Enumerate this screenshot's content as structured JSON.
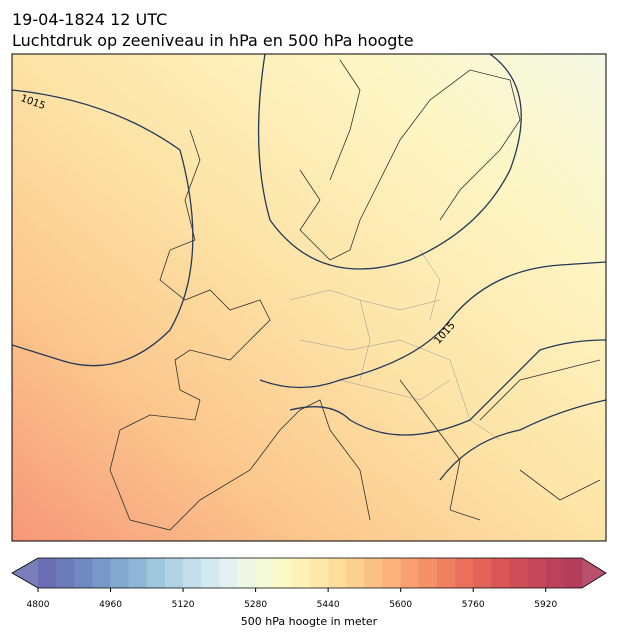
{
  "header": {
    "time": "19-04-1824 12 UTC",
    "title": "Luchtdruk op zeeniveau in hPa en 500 hPa hoogte"
  },
  "map": {
    "contour_labels": [
      "1015",
      "1015"
    ]
  },
  "colorbar": {
    "label": "500 hPa hoogte in meter",
    "lim": [
      4800,
      6000
    ],
    "ticks": [
      4800,
      4960,
      5120,
      5280,
      5440,
      5600,
      5760,
      5920
    ],
    "colors": [
      "#6a6fb3",
      "#6c7cb9",
      "#7189c0",
      "#7898c7",
      "#82a8ce",
      "#8fb7d5",
      "#9fc6dd",
      "#b1d3e5",
      "#c3dfec",
      "#d4eaf1",
      "#e3f1f1",
      "#eef6e6",
      "#f6f9d6",
      "#fbfac6",
      "#fdf3b8",
      "#fde9aa",
      "#fddd9c",
      "#fcd08f",
      "#fbc184",
      "#fab17a",
      "#f8a071",
      "#f59069",
      "#f08062",
      "#ea705c",
      "#e26358",
      "#d95756",
      "#cf4d57",
      "#c64759",
      "#bc425b",
      "#b23e5c"
    ]
  }
}
